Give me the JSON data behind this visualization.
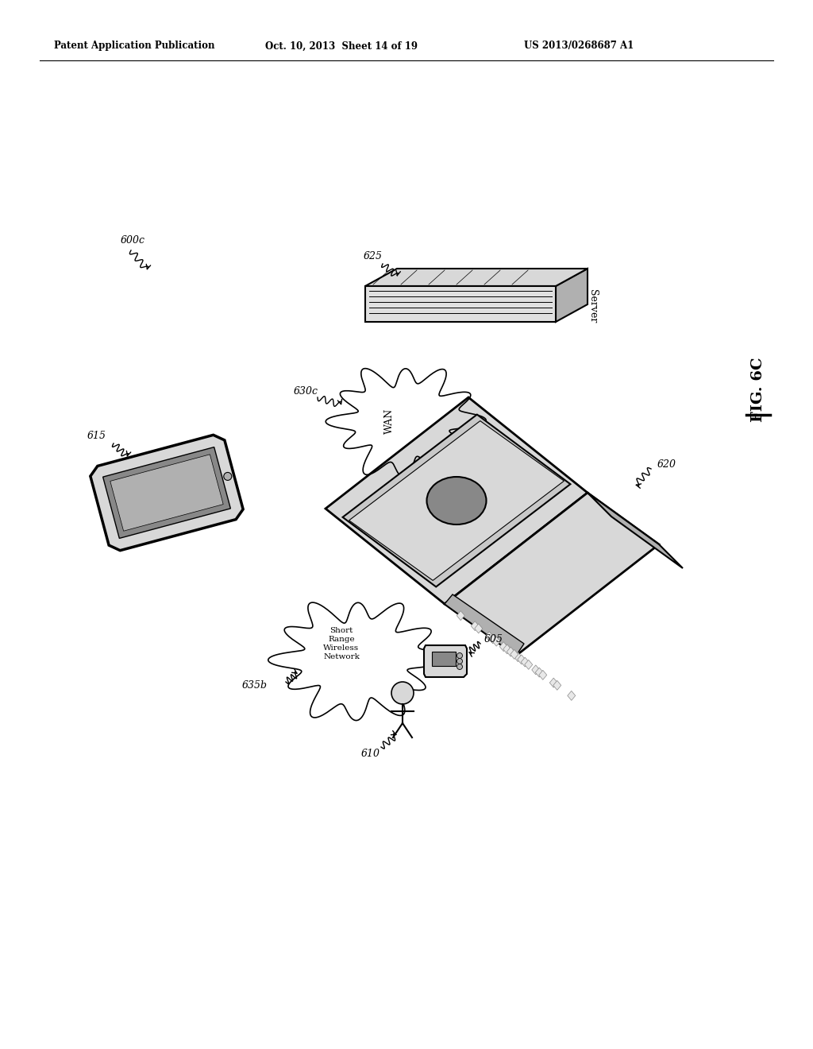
{
  "bg_color": "#ffffff",
  "header_left": "Patent Application Publication",
  "header_mid": "Oct. 10, 2013  Sheet 14 of 19",
  "header_right": "US 2013/0268687 A1",
  "fig_label": "FIG. 6C",
  "label_600c": "600c",
  "label_615": "615",
  "label_620": "620",
  "label_625": "625",
  "label_630c": "630c",
  "label_635b": "635b",
  "label_605": "605",
  "label_610": "610",
  "label_wan": "WAN",
  "label_server": "Server",
  "label_short_range": "Short\nRange\nWireless\nNetwork",
  "gray_light": "#d8d8d8",
  "gray_mid": "#b0b0b0",
  "gray_dark": "#888888",
  "gray_darker": "#606060",
  "white": "#ffffff",
  "black": "#000000",
  "hatch_light": "#e8e8e8"
}
